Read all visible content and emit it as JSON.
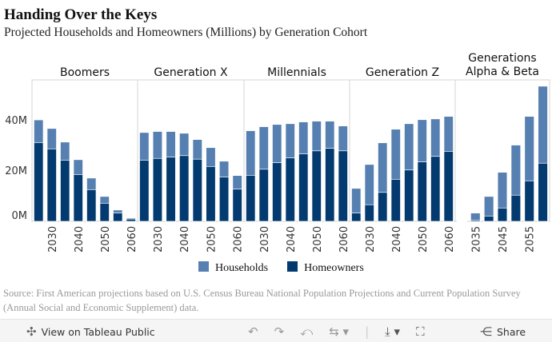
{
  "title": "Handing Over the Keys",
  "subtitle": "Projected Households and Homeowners (Millions) by Generation Cohort",
  "chart_data": {
    "type": "bar",
    "stacking": "overlay",
    "ylim": [
      0,
      56
    ],
    "yticks": [
      "0M",
      "20M",
      "40M"
    ],
    "ytick_values": [
      0,
      20,
      40
    ],
    "colors": {
      "Households": "#5680b1",
      "Homeowners": "#033a6f"
    },
    "panels": [
      {
        "name": "Boomers",
        "years": [
          2025,
          2030,
          2035,
          2040,
          2045,
          2050,
          2055,
          2060
        ],
        "tick_labels": [
          "2030",
          "2040",
          "2050",
          "2060"
        ],
        "households": [
          40.3,
          36.9,
          31.5,
          24.5,
          17.2,
          9.9,
          4.5,
          1.3
        ],
        "homeowners": [
          31.3,
          28.8,
          24.3,
          18.6,
          12.6,
          7.2,
          3.3,
          0.9
        ]
      },
      {
        "name": "Generation X",
        "years": [
          2025,
          2030,
          2035,
          2040,
          2045,
          2050,
          2055,
          2060
        ],
        "tick_labels": [
          "2030",
          "2040",
          "2050",
          "2060"
        ],
        "households": [
          35.3,
          35.7,
          35.7,
          35.0,
          32.5,
          29.3,
          23.9,
          18.2
        ],
        "homeowners": [
          24.3,
          25.0,
          25.5,
          26.1,
          24.7,
          21.8,
          17.6,
          12.8
        ]
      },
      {
        "name": "Millennials",
        "years": [
          2025,
          2030,
          2035,
          2040,
          2045,
          2050,
          2055,
          2060
        ],
        "tick_labels": [
          "2030",
          "2040",
          "2050",
          "2060"
        ],
        "households": [
          36.0,
          37.6,
          38.5,
          38.8,
          39.5,
          39.8,
          39.8,
          37.9
        ],
        "homeowners": [
          18.3,
          20.7,
          23.3,
          25.2,
          26.8,
          28.0,
          29.0,
          28.0
        ]
      },
      {
        "name": "Generation Z",
        "years": [
          2025,
          2030,
          2035,
          2040,
          2045,
          2050,
          2055,
          2060
        ],
        "tick_labels": [
          "2030",
          "2040",
          "2050",
          "2060"
        ],
        "households": [
          13.1,
          22.6,
          31.2,
          36.6,
          38.8,
          40.4,
          40.7,
          41.7
        ],
        "homeowners": [
          3.3,
          6.6,
          11.5,
          16.7,
          20.4,
          23.6,
          25.8,
          27.8
        ]
      },
      {
        "name": "Generations Alpha & Beta",
        "name_lines": [
          "Generations",
          "Alpha & Beta"
        ],
        "years": [
          2030,
          2035,
          2040,
          2045,
          2050,
          2055,
          2060
        ],
        "tick_labels": [
          "2035",
          "2045",
          "2055"
        ],
        "households": [
          0.1,
          3.3,
          9.9,
          19.5,
          30.3,
          41.7,
          53.7
        ],
        "homeowners": [
          0.05,
          0.5,
          2.1,
          5.3,
          10.4,
          16.1,
          23.1
        ]
      }
    ],
    "legend": [
      {
        "name": "Households"
      },
      {
        "name": "Homeowners"
      }
    ],
    "legend_position": "bottom",
    "grid": false
  },
  "source": "Source: First American projections based on U.S. Census Bureau National Population Projections and Current Population Survey (Annual Social and Economic Supplement) data.",
  "toolbar": {
    "view_label": "View on Tableau Public",
    "share_label": "Share"
  }
}
